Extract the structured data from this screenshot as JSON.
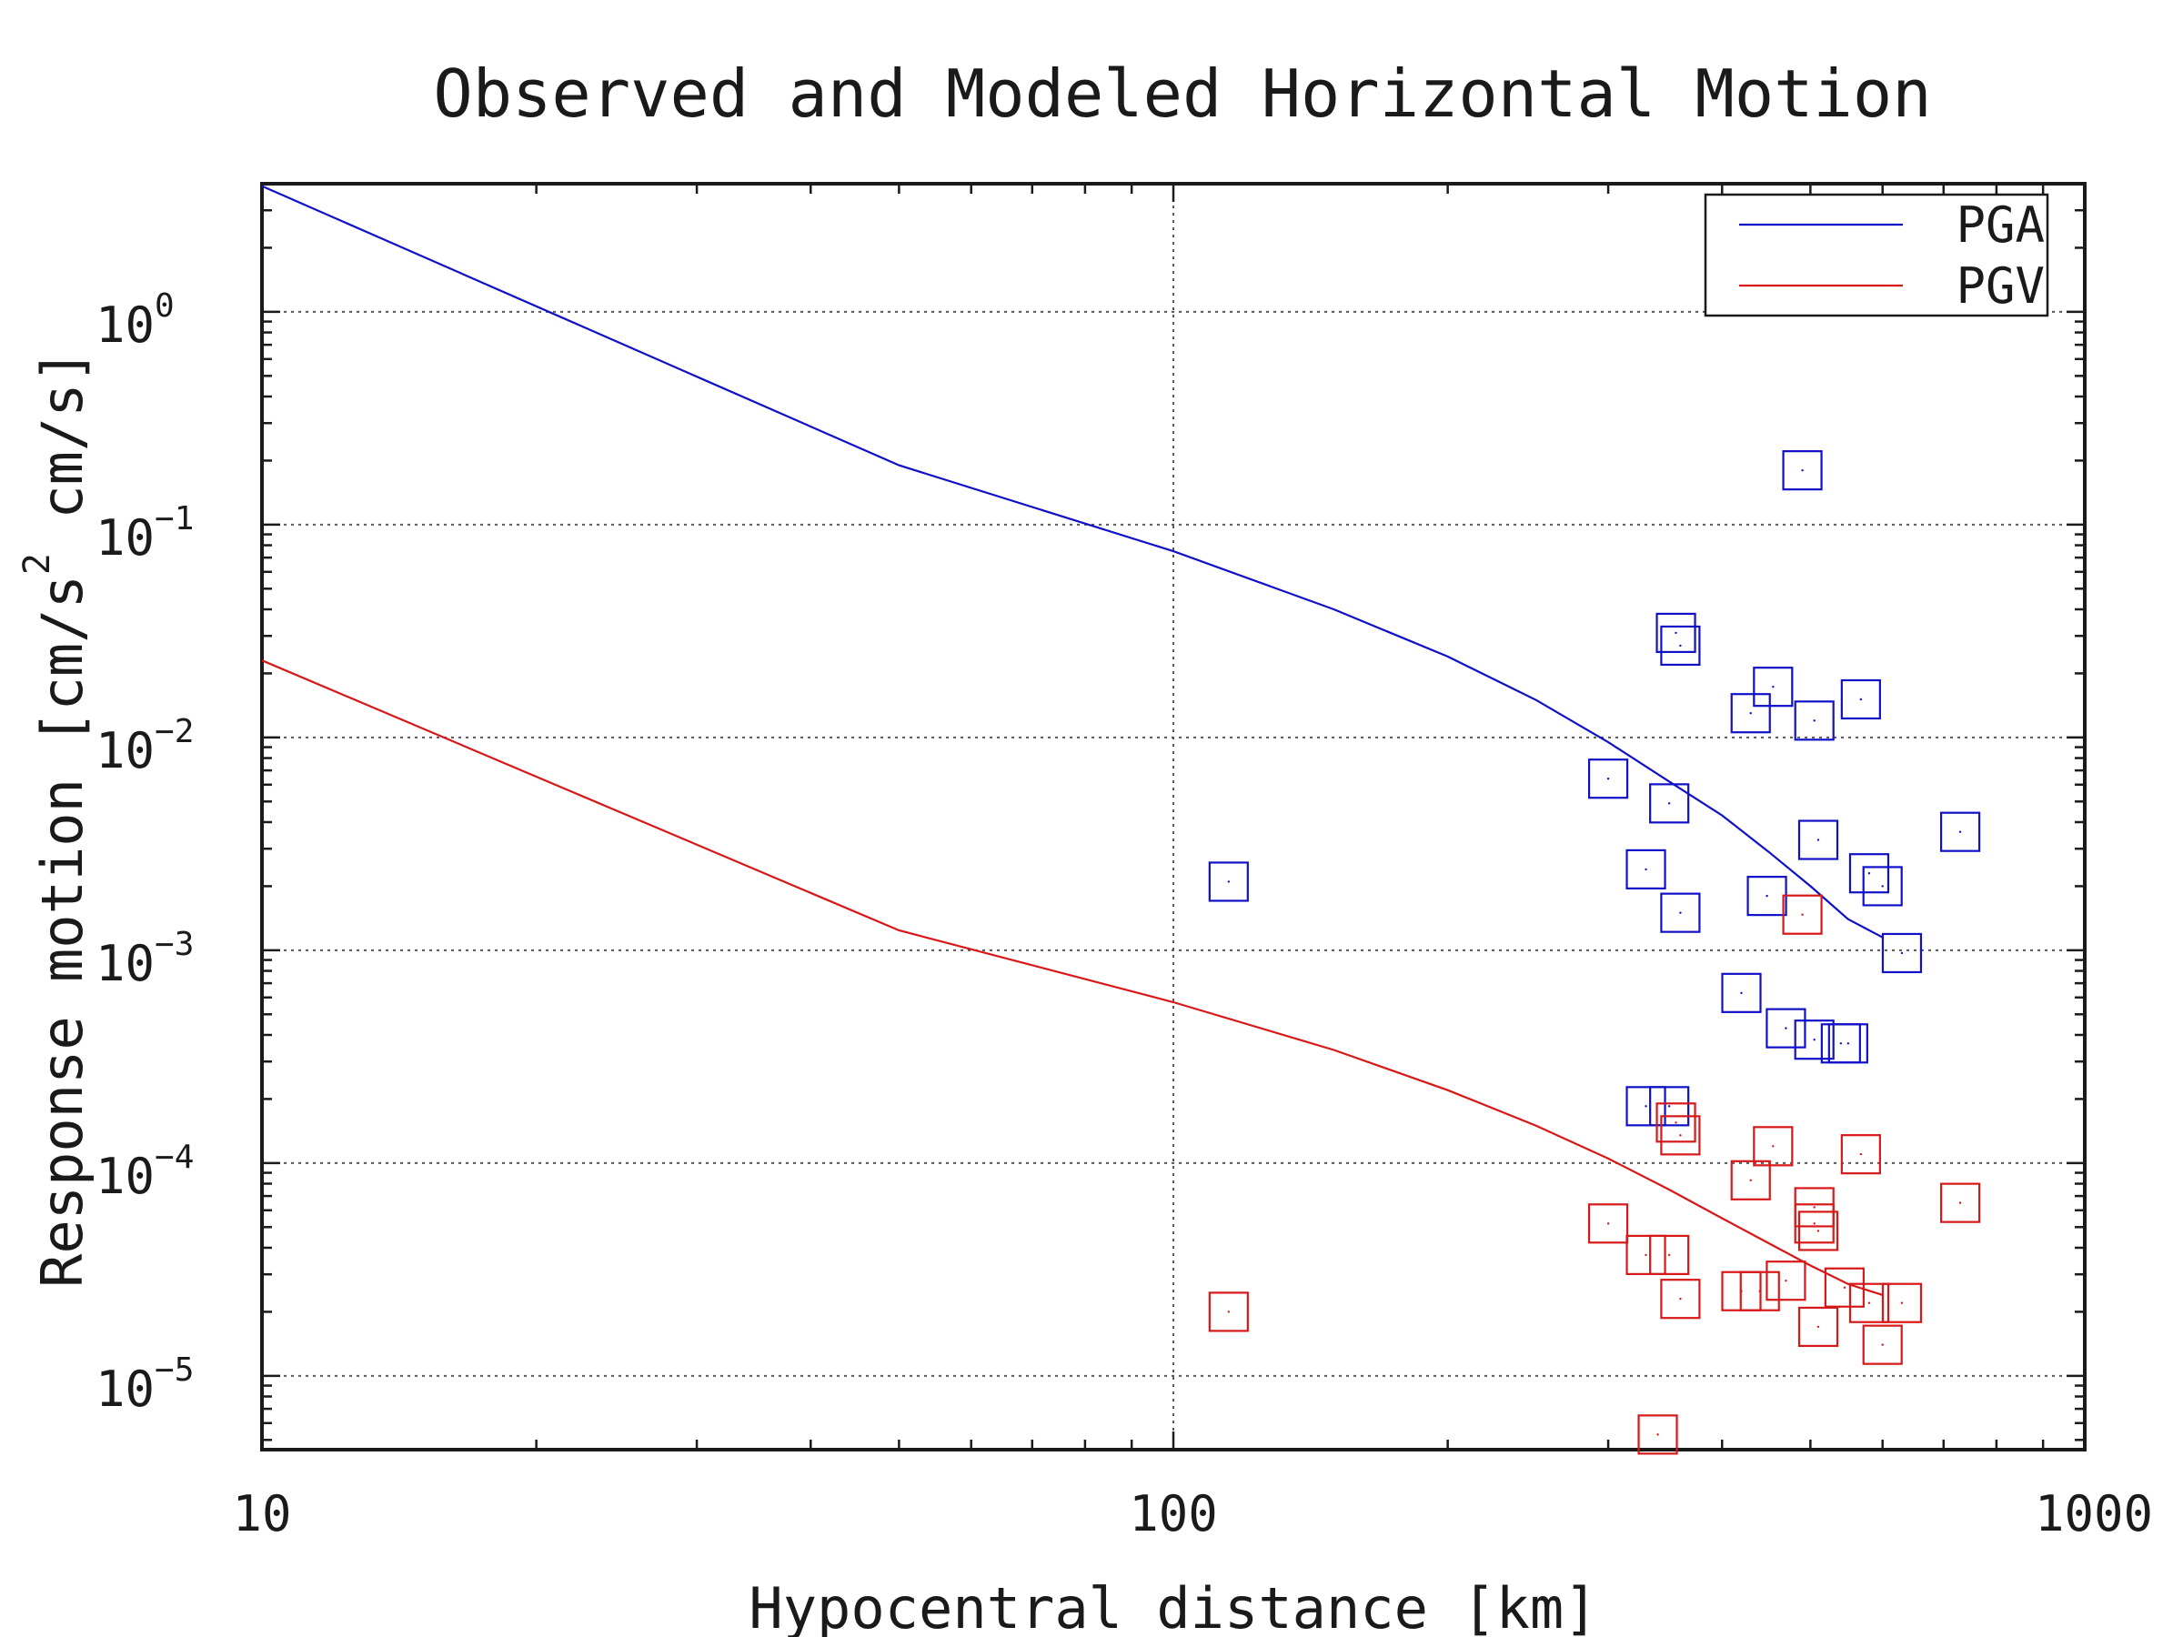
{
  "chart_data": {
    "type": "line",
    "title": "Observed and Modeled Horizontal Motion",
    "xlabel": "Hypocentral distance [km]",
    "ylabel_parts": [
      "Response motion  [cm/s",
      "2",
      "  cm/s]"
    ],
    "x_scale": "log",
    "y_scale": "log",
    "xlim": [
      10,
      1000
    ],
    "ylim": [
      4.5e-06,
      4
    ],
    "x_ticks": [
      {
        "value": 10,
        "label": "10"
      },
      {
        "value": 100,
        "label": "100"
      },
      {
        "value": 1000,
        "label": "1000"
      }
    ],
    "y_ticks": [
      {
        "value": 1,
        "base": "10",
        "exp": "0"
      },
      {
        "value": 0.1,
        "base": "10",
        "exp": "−1"
      },
      {
        "value": 0.01,
        "base": "10",
        "exp": "−2"
      },
      {
        "value": 0.001,
        "base": "10",
        "exp": "−3"
      },
      {
        "value": 0.0001,
        "base": "10",
        "exp": "−4"
      },
      {
        "value": 1e-05,
        "base": "10",
        "exp": "−5"
      }
    ],
    "grid": true,
    "legend_position": "top-right",
    "colors": {
      "pga": "#1010c8",
      "pgv": "#d81818"
    },
    "series": [
      {
        "name": "PGA",
        "kind": "line",
        "color": "#1010c8",
        "x": [
          10,
          50,
          100,
          150,
          200,
          250,
          300,
          350,
          400,
          450,
          500,
          550,
          600
        ],
        "y": [
          3.9,
          0.19,
          0.075,
          0.04,
          0.024,
          0.015,
          0.0095,
          0.0062,
          0.0043,
          0.0029,
          0.002,
          0.0014,
          0.00115
        ]
      },
      {
        "name": "PGV",
        "kind": "line",
        "color": "#d81818",
        "x": [
          10,
          50,
          100,
          150,
          200,
          250,
          300,
          350,
          400,
          450,
          500,
          550,
          600
        ],
        "y": [
          0.023,
          0.00124,
          0.00057,
          0.00034,
          0.00022,
          0.00015,
          0.000105,
          7.5e-05,
          5.5e-05,
          4.2e-05,
          3.3e-05,
          2.7e-05,
          2.4e-05
        ]
      },
      {
        "name": "PGA observed",
        "kind": "markers",
        "color": "#1010c8",
        "x": [
          115,
          300,
          330,
          350,
          356,
          360,
          360,
          350,
          330,
          420,
          430,
          448,
          455,
          470,
          490,
          505,
          510,
          540,
          550,
          568,
          580,
          600,
          630,
          505,
          730
        ],
        "y": [
          0.0021,
          0.0064,
          0.0024,
          0.0049,
          0.031,
          0.027,
          0.0015,
          0.000185,
          0.000185,
          0.00063,
          0.013,
          0.0018,
          0.0173,
          0.00043,
          0.18,
          0.012,
          0.0033,
          0.000365,
          0.000365,
          0.0151,
          0.0023,
          0.002,
          0.00097,
          0.00038,
          0.0036
        ]
      },
      {
        "name": "PGV observed",
        "kind": "markers",
        "color": "#d81818",
        "x": [
          115,
          300,
          330,
          350,
          356,
          360,
          360,
          340,
          420,
          430,
          440,
          455,
          470,
          490,
          505,
          510,
          510,
          545,
          568,
          580,
          600,
          630,
          505,
          730
        ],
        "y": [
          2e-05,
          5.2e-05,
          3.7e-05,
          3.7e-05,
          0.000155,
          0.000135,
          2.3e-05,
          5.3e-06,
          2.5e-05,
          8.3e-05,
          2.5e-05,
          0.00012,
          2.8e-05,
          0.00147,
          6.2e-05,
          4.8e-05,
          1.7e-05,
          2.6e-05,
          0.00011,
          2.2e-05,
          1.4e-05,
          2.2e-05,
          5.2e-05,
          6.5e-05
        ]
      }
    ]
  }
}
